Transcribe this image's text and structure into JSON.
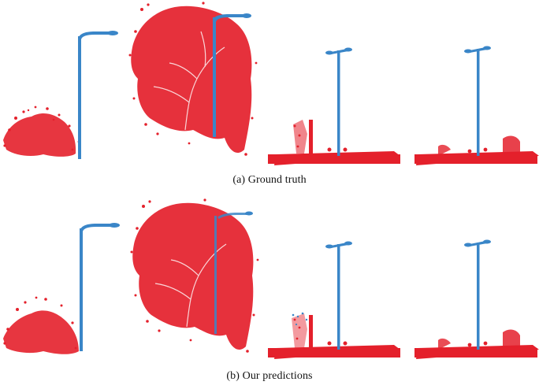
{
  "figure": {
    "panels": [
      {
        "caption": "(a) Ground truth"
      },
      {
        "caption": "(b) Our predictions"
      }
    ],
    "colors": {
      "vegetation": "#e4202b",
      "pole": "#3a86c8",
      "ground": "#e4202b"
    },
    "objects": [
      "bush-with-lamp-post",
      "tree-with-lamp-post",
      "street-light-scene-1",
      "street-light-scene-2"
    ]
  }
}
